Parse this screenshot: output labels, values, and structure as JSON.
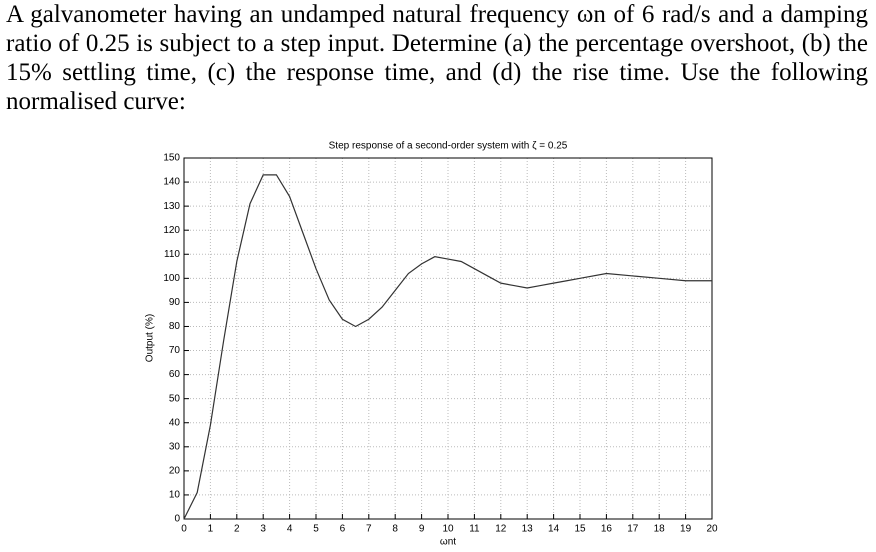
{
  "text": "A galvanometer having an undamped natural frequency ωn of 6 rad/s and a damping ratio of 0.25 is subject to a step input. Determine (a) the percentage overshoot, (b) the 15% settling time, (c) the response time, and (d) the rise time. Use the following normalised curve:",
  "chart_data": {
    "type": "line",
    "title": "Step response of a second-order system with ζ = 0.25",
    "x_label": "ωnt",
    "y_label": "Output (%)",
    "x": [
      0,
      0.5,
      1,
      1.5,
      2,
      2.5,
      3,
      3.5,
      4,
      4.5,
      5,
      5.5,
      6,
      6.5,
      7,
      7.5,
      8,
      8.5,
      9,
      9.5,
      10,
      10.5,
      11,
      11.5,
      12,
      12.5,
      13,
      13.5,
      14,
      14.5,
      15,
      16,
      17,
      18,
      19,
      20
    ],
    "values": [
      0,
      11,
      39,
      74,
      107,
      131,
      143,
      143,
      134,
      119,
      104,
      91,
      83,
      80,
      83,
      88,
      95,
      102,
      106,
      109,
      108,
      107,
      104,
      101,
      98,
      97,
      96,
      97,
      98,
      99,
      100,
      102,
      101,
      100,
      99,
      99
    ],
    "color": "#333333",
    "xlim": [
      0,
      20
    ],
    "xticks": [
      0,
      1,
      2,
      3,
      4,
      5,
      6,
      7,
      8,
      9,
      10,
      11,
      12,
      13,
      14,
      15,
      16,
      17,
      18,
      19,
      20
    ],
    "ylim": [
      0,
      150
    ],
    "yticks": [
      0,
      10,
      20,
      30,
      40,
      50,
      60,
      70,
      80,
      90,
      100,
      110,
      120,
      130,
      140,
      150
    ],
    "grid": true
  }
}
